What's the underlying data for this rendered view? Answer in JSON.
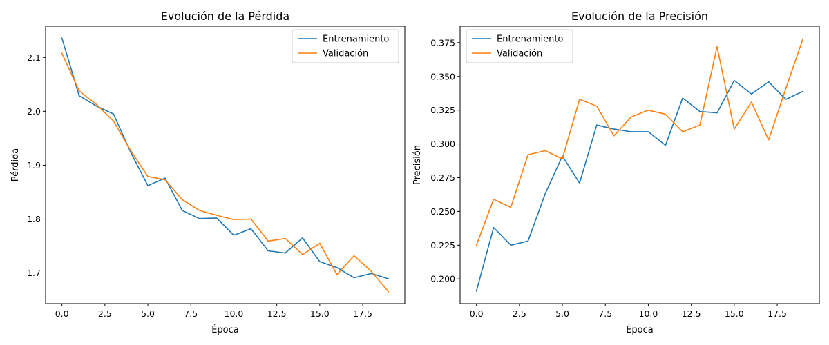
{
  "chart_data": [
    {
      "type": "line",
      "title": "Evolución de la Pérdida",
      "xlabel": "Época",
      "ylabel": "Pérdida",
      "xlim": [
        -0.95,
        19.95
      ],
      "ylim": [
        1.643,
        2.158
      ],
      "xticks": [
        0.0,
        2.5,
        5.0,
        7.5,
        10.0,
        12.5,
        15.0,
        17.5
      ],
      "xtick_labels": [
        "0.0",
        "2.5",
        "5.0",
        "7.5",
        "10.0",
        "12.5",
        "15.0",
        "17.5"
      ],
      "yticks": [
        1.7,
        1.8,
        1.9,
        2.0,
        2.1
      ],
      "ytick_labels": [
        "1.7",
        "1.8",
        "1.9",
        "2.0",
        "2.1"
      ],
      "legend_position": "top-right",
      "grid": false,
      "x": [
        0,
        1,
        2,
        3,
        4,
        5,
        6,
        7,
        8,
        9,
        10,
        11,
        12,
        13,
        14,
        15,
        16,
        17,
        18,
        19
      ],
      "series": [
        {
          "name": "Entrenamiento",
          "color": "#1f77b4",
          "values": [
            2.136,
            2.029,
            2.01,
            1.995,
            1.924,
            1.862,
            1.876,
            1.816,
            1.801,
            1.802,
            1.77,
            1.782,
            1.741,
            1.737,
            1.765,
            1.721,
            1.71,
            1.691,
            1.699,
            1.689
          ]
        },
        {
          "name": "Validación",
          "color": "#ff7f0e",
          "values": [
            2.108,
            2.038,
            2.013,
            1.982,
            1.927,
            1.879,
            1.873,
            1.836,
            1.816,
            1.807,
            1.799,
            1.8,
            1.759,
            1.764,
            1.734,
            1.755,
            1.697,
            1.732,
            1.703,
            1.665
          ]
        }
      ]
    },
    {
      "type": "line",
      "title": "Evolución de la Precisión",
      "xlabel": "Época",
      "ylabel": "Precisión",
      "xlim": [
        -0.95,
        19.95
      ],
      "ylim": [
        0.1817,
        0.3872
      ],
      "xticks": [
        0.0,
        2.5,
        5.0,
        7.5,
        10.0,
        12.5,
        15.0,
        17.5
      ],
      "xtick_labels": [
        "0.0",
        "2.5",
        "5.0",
        "7.5",
        "10.0",
        "12.5",
        "15.0",
        "17.5"
      ],
      "yticks": [
        0.2,
        0.225,
        0.25,
        0.275,
        0.3,
        0.325,
        0.35,
        0.375
      ],
      "ytick_labels": [
        "0.200",
        "0.225",
        "0.250",
        "0.275",
        "0.300",
        "0.325",
        "0.350",
        "0.375"
      ],
      "legend_position": "top-left",
      "grid": false,
      "x": [
        0,
        1,
        2,
        3,
        4,
        5,
        6,
        7,
        8,
        9,
        10,
        11,
        12,
        13,
        14,
        15,
        16,
        17,
        18,
        19
      ],
      "series": [
        {
          "name": "Entrenamiento",
          "color": "#1f77b4",
          "values": [
            0.191,
            0.238,
            0.225,
            0.228,
            0.263,
            0.291,
            0.271,
            0.314,
            0.311,
            0.309,
            0.309,
            0.299,
            0.334,
            0.324,
            0.323,
            0.347,
            0.337,
            0.346,
            0.333,
            0.339
          ]
        },
        {
          "name": "Validación",
          "color": "#ff7f0e",
          "values": [
            0.225,
            0.259,
            0.253,
            0.292,
            0.295,
            0.289,
            0.333,
            0.328,
            0.306,
            0.32,
            0.325,
            0.322,
            0.309,
            0.314,
            0.372,
            0.311,
            0.331,
            0.303,
            0.341,
            0.378
          ]
        }
      ]
    }
  ]
}
